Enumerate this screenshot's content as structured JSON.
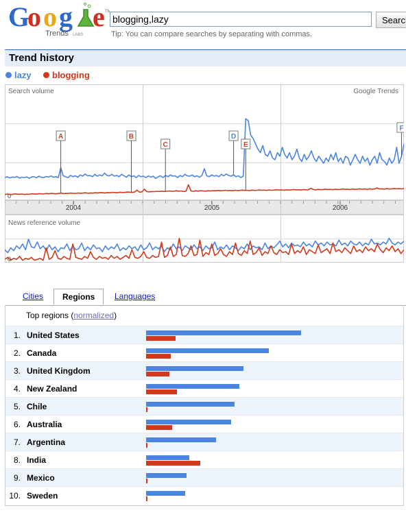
{
  "header": {
    "logo_text": "Google",
    "logo_sub": "Trends",
    "logo_badge": "LABS",
    "search_value": "blogging,lazy",
    "search_button": "Search",
    "tip": "Tip: You can compare searches by separating with commas."
  },
  "trend": {
    "title": "Trend history",
    "legend": [
      {
        "label": "lazy",
        "color": "#4b84e1"
      },
      {
        "label": "blogging",
        "color": "#d1391c"
      }
    ]
  },
  "colors": {
    "lazy": "#4b84e1",
    "blogging": "#d1391c"
  },
  "chart_data": [
    {
      "type": "line",
      "panel": "Search volume",
      "watermark": "Google Trends",
      "y_zero_label": "0",
      "x_ticks": [
        "2004",
        "2005",
        "2006"
      ],
      "series": [
        {
          "name": "lazy",
          "values": [
            1.0,
            1.05,
            0.98,
            1.03,
            1.01,
            1.06,
            0.97,
            1.02,
            1.0,
            1.04,
            0.96,
            1.03,
            1.05,
            0.99,
            1.08,
            1.02,
            1.0,
            1.06,
            1.03,
            1.1,
            1.02,
            1.05,
            1.0,
            1.55,
            1.1,
            1.05,
            1.0,
            1.12,
            1.05,
            1.1,
            1.02,
            1.15,
            1.08,
            1.2,
            1.1,
            1.12,
            1.05,
            1.18,
            1.08,
            1.15,
            1.1,
            1.25,
            1.12,
            1.1,
            1.18,
            1.08,
            1.12,
            1.05,
            1.18,
            1.1,
            1.02,
            1.15,
            1.05,
            1.1,
            1.0,
            1.12,
            1.05,
            1.08,
            1.0,
            1.1,
            1.02,
            1.08,
            0.95,
            1.05,
            1.1,
            1.0,
            1.12,
            1.05,
            1.15,
            1.08,
            1.1,
            1.0,
            1.12,
            1.05,
            1.18,
            1.1,
            1.08,
            1.15,
            1.05,
            1.1,
            1.02,
            1.12,
            1.5,
            1.1,
            1.05,
            1.15,
            1.08,
            1.12,
            1.05,
            1.18,
            1.1,
            1.2,
            1.12,
            1.08,
            1.15,
            1.05,
            1.1,
            1.0,
            1.08,
            4.3,
            4.2,
            3.4,
            3.2,
            2.9,
            2.6,
            2.4,
            2.8,
            2.3,
            2.2,
            2.5,
            2.1,
            2.0,
            2.4,
            2.2,
            2.7,
            2.3,
            2.1,
            2.4,
            2.0,
            2.2,
            2.6,
            2.1,
            1.9,
            2.3,
            2.0,
            2.2,
            2.5,
            2.1,
            1.9,
            2.2,
            2.0,
            1.8,
            2.1,
            1.9,
            2.3,
            2.0,
            2.4,
            1.9,
            2.1,
            1.8,
            2.2,
            2.1,
            1.7,
            2.0,
            2.3,
            2.0,
            1.8,
            2.2,
            1.9,
            2.1,
            1.7,
            2.0,
            2.2,
            1.8,
            2.4,
            2.0,
            1.9,
            1.7,
            2.1,
            1.8,
            2.0,
            2.7,
            1.8,
            2.2,
            2.9
          ]
        },
        {
          "name": "blogging",
          "values": [
            0.05,
            0.08,
            0.06,
            0.05,
            0.09,
            0.07,
            0.06,
            0.08,
            0.05,
            0.07,
            0.06,
            0.09,
            0.08,
            0.07,
            0.1,
            0.09,
            0.08,
            0.11,
            0.09,
            0.12,
            0.1,
            0.09,
            0.11,
            0.13,
            0.1,
            0.12,
            0.11,
            0.13,
            0.12,
            0.11,
            0.14,
            0.12,
            0.13,
            0.15,
            0.12,
            0.14,
            0.13,
            0.15,
            0.14,
            0.16,
            0.15,
            0.14,
            0.16,
            0.15,
            0.17,
            0.16,
            0.15,
            0.18,
            0.16,
            0.17,
            0.19,
            0.18,
            0.17,
            0.19,
            0.3,
            0.18,
            0.2,
            0.35,
            0.21,
            0.2,
            0.22,
            0.21,
            0.23,
            0.22,
            0.24,
            0.22,
            0.23,
            0.25,
            0.24,
            0.23,
            0.26,
            0.24,
            0.25,
            0.22,
            0.24,
            0.6,
            0.25,
            0.23,
            0.26,
            0.24,
            0.27,
            0.25,
            0.24,
            0.26,
            0.25,
            0.27,
            0.26,
            0.28,
            0.26,
            0.27,
            0.29,
            0.27,
            0.28,
            0.26,
            0.29,
            0.27,
            0.28,
            0.3,
            0.28,
            0.29,
            0.27,
            0.3,
            0.28,
            0.29,
            0.31,
            0.29,
            0.3,
            0.28,
            0.31,
            0.29,
            0.3,
            0.32,
            0.3,
            0.31,
            0.29,
            0.32,
            0.3,
            0.31,
            0.33,
            0.31,
            0.32,
            0.3,
            0.33,
            0.31,
            0.32,
            0.4,
            0.33,
            0.31,
            0.34,
            0.32,
            0.33,
            0.35,
            0.33,
            0.34,
            0.32,
            0.35,
            0.33,
            0.34,
            0.36,
            0.34,
            0.35,
            0.33,
            0.36,
            0.34,
            0.35,
            0.37,
            0.35,
            0.36,
            0.34,
            0.37,
            0.35,
            0.36,
            0.42,
            0.36,
            0.37,
            0.35,
            0.38,
            0.36,
            0.37,
            0.39,
            0.37,
            0.38,
            0.36,
            0.39
          ]
        }
      ],
      "markers": [
        {
          "label": "A",
          "color": "#d1391c",
          "series": "blogging"
        },
        {
          "label": "B",
          "color": "#d1391c",
          "series": "blogging"
        },
        {
          "label": "C",
          "color": "#d1391c",
          "series": "blogging"
        },
        {
          "label": "D",
          "color": "#4b84e1",
          "series": "lazy"
        },
        {
          "label": "E",
          "color": "#d1391c",
          "series": "blogging"
        },
        {
          "label": "F",
          "color": "#4b84e1",
          "series": "lazy"
        }
      ]
    },
    {
      "type": "line",
      "panel": "News reference volume",
      "y_zero_label": "0",
      "series": [
        {
          "name": "lazy",
          "values": [
            1.2,
            0.9,
            1.4,
            1.1,
            1.6,
            1.3,
            1.8,
            1.2,
            2.3,
            1.5,
            1.4,
            2.0,
            1.3,
            1.6,
            1.1,
            1.7,
            1.2,
            1.5,
            1.0,
            1.4,
            1.3,
            1.8,
            1.1,
            1.6,
            1.2,
            1.3,
            1.9,
            1.1,
            1.5,
            1.2,
            1.7,
            1.3,
            1.4,
            1.0,
            1.6,
            1.2,
            1.5,
            1.3,
            1.8,
            1.1,
            1.4,
            1.2,
            1.6,
            1.3,
            1.5,
            1.1,
            1.7,
            1.2,
            1.4,
            1.9,
            1.2,
            1.5,
            1.3,
            1.6,
            1.0,
            1.4,
            1.2,
            1.8,
            1.3,
            1.5,
            1.1,
            1.6,
            1.4,
            1.2,
            1.7,
            1.3,
            1.5,
            1.1,
            1.6,
            1.3,
            1.4,
            2.0,
            1.2,
            1.5,
            1.3,
            1.7,
            1.2,
            1.6,
            1.4,
            1.1,
            1.5,
            1.3,
            1.8,
            1.2,
            1.6,
            1.4,
            1.5,
            1.2,
            1.9,
            1.3,
            1.6,
            1.4,
            1.7,
            2.1,
            1.5,
            1.8,
            1.4,
            1.9,
            1.6,
            1.7,
            1.5,
            2.0,
            1.6,
            1.8,
            1.5,
            2.1,
            1.7,
            1.9,
            1.6,
            2.0,
            1.7,
            1.8,
            1.6,
            2.2,
            1.7,
            1.9,
            1.6,
            2.1,
            1.8,
            1.7,
            2.0,
            1.6,
            1.9,
            1.7,
            2.3,
            1.8,
            1.9,
            1.7,
            2.0,
            1.8,
            2.4,
            1.9,
            1.7,
            2.0,
            1.8,
            2.1
          ]
        },
        {
          "name": "blogging",
          "values": [
            0.2,
            0.4,
            0.1,
            0.3,
            0.2,
            0.5,
            0.1,
            0.3,
            0.2,
            0.4,
            0.1,
            0.2,
            0.3,
            0.1,
            1.4,
            0.2,
            0.4,
            1.1,
            0.3,
            0.2,
            0.5,
            0.3,
            0.2,
            1.8,
            0.4,
            0.3,
            0.2,
            0.5,
            0.3,
            1.0,
            0.4,
            0.2,
            0.5,
            0.3,
            0.4,
            0.2,
            0.6,
            0.3,
            0.5,
            0.2,
            0.4,
            0.6,
            0.3,
            1.2,
            0.4,
            0.3,
            0.5,
            1.0,
            0.4,
            0.3,
            0.6,
            0.4,
            0.5,
            2.0,
            0.4,
            0.6,
            1.5,
            0.5,
            0.7,
            2.4,
            0.6,
            0.5,
            0.8,
            1.6,
            0.6,
            0.7,
            2.2,
            0.5,
            0.9,
            0.7,
            1.8,
            0.6,
            0.8,
            1.3,
            0.7,
            0.5,
            1.0,
            0.7,
            1.9,
            0.8,
            0.6,
            1.1,
            0.8,
            2.1,
            0.7,
            0.9,
            1.4,
            0.6,
            1.0,
            0.8,
            1.6,
            0.9,
            0.7,
            1.2,
            0.9,
            1.0,
            0.7,
            1.8,
            0.8,
            1.1,
            0.9,
            1.5,
            0.7,
            1.2,
            1.0,
            0.8,
            1.7,
            0.9,
            1.1,
            1.3,
            0.8,
            1.9,
            1.0,
            1.2,
            0.9,
            1.4,
            1.1,
            0.8,
            1.6,
            1.0,
            1.2,
            0.9,
            1.5,
            1.1,
            1.3,
            1.0,
            1.8,
            1.2,
            0.9,
            1.4,
            1.1,
            1.6,
            1.0,
            1.3,
            0.8,
            1.2
          ]
        }
      ]
    },
    {
      "type": "bar",
      "panel": "Top regions",
      "series": [
        {
          "name": "lazy",
          "values": [
            100,
            79,
            63,
            60,
            57,
            55,
            45,
            28,
            26,
            25
          ]
        },
        {
          "name": "blogging",
          "values": [
            19,
            16,
            15,
            20,
            1,
            17,
            1,
            35,
            1,
            1
          ]
        }
      ],
      "categories": [
        "United States",
        "Canada",
        "United Kingdom",
        "New Zealand",
        "Chile",
        "Australia",
        "Argentina",
        "India",
        "Mexico",
        "Sweden"
      ]
    }
  ],
  "tabs": [
    {
      "label": "Cities",
      "active": false
    },
    {
      "label": "Regions",
      "active": true
    },
    {
      "label": "Languages",
      "active": false
    }
  ],
  "regions": {
    "header_prefix": "Top regions (",
    "header_link": "normalized",
    "header_suffix": ")",
    "rows": [
      {
        "rank": "1.",
        "name": "United States"
      },
      {
        "rank": "2.",
        "name": "Canada"
      },
      {
        "rank": "3.",
        "name": "United Kingdom"
      },
      {
        "rank": "4.",
        "name": "New Zealand"
      },
      {
        "rank": "5.",
        "name": "Chile"
      },
      {
        "rank": "6.",
        "name": "Australia"
      },
      {
        "rank": "7.",
        "name": "Argentina"
      },
      {
        "rank": "8.",
        "name": "India"
      },
      {
        "rank": "9.",
        "name": "Mexico"
      },
      {
        "rank": "10.",
        "name": "Sweden"
      }
    ]
  }
}
